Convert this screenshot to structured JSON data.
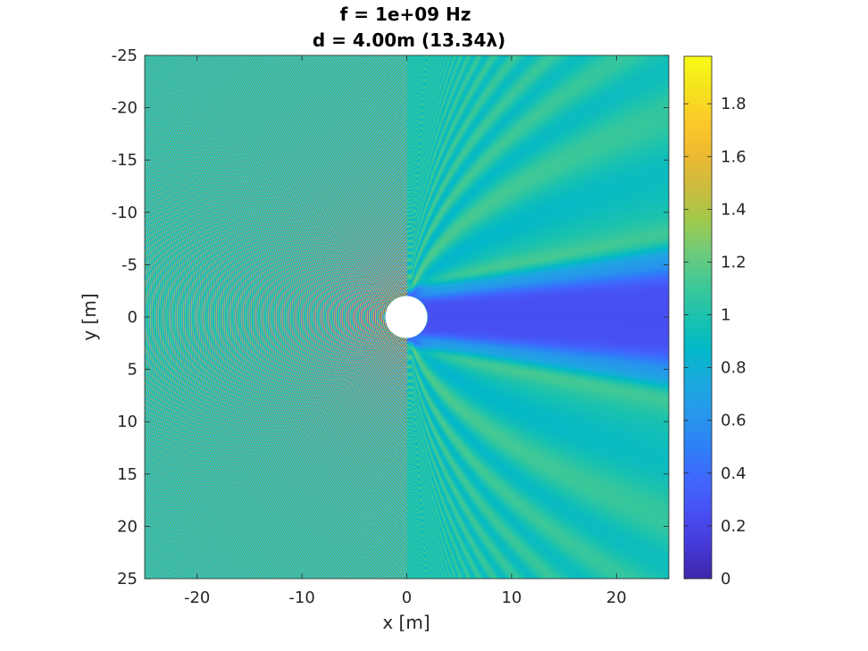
{
  "chart_data": {
    "type": "heatmap",
    "title": [
      "f = 1e+09 Hz",
      "d = 4.00m (13.34λ)"
    ],
    "xlabel": "x [m]",
    "ylabel": "y [m]",
    "xlim": [
      -25,
      25
    ],
    "ylim": [
      -25,
      25
    ],
    "y_reversed": true,
    "xticks": [
      -20,
      -10,
      0,
      10,
      20
    ],
    "yticks": [
      -25,
      -20,
      -15,
      -10,
      -5,
      0,
      5,
      10,
      15,
      20,
      25
    ],
    "colorbar": {
      "range": [
        0,
        1.98
      ],
      "ticks": [
        0,
        0.2,
        0.4,
        0.6,
        0.8,
        1,
        1.2,
        1.4,
        1.6,
        1.8
      ],
      "colormap": "parula"
    },
    "obstacle": {
      "shape": "circle",
      "center": [
        0,
        0
      ],
      "diameter": 4.0,
      "fill": "#ffffff"
    },
    "field_description": "Normalized field magnitude around a circular scatterer illuminated from -x; value ~1 far field, strong interference fringes on the illuminated side, deep shadow (~0.1-0.4) behind the scatterer along +x with bright fringes (~1.3-1.5) bordering the shadow."
  },
  "colors": {
    "parula": [
      "#3E26A8",
      "#4538D7",
      "#484FF2",
      "#4067FD",
      "#2E7FF7",
      "#2797EB",
      "#1CA9DF",
      "#03B8C8",
      "#1AC2AF",
      "#3FC897",
      "#6ECB7A",
      "#A1C94B",
      "#CDBB3F",
      "#EEBA31",
      "#FDC929",
      "#F4E31E",
      "#F9FB15"
    ],
    "axes_text": "#262626"
  }
}
